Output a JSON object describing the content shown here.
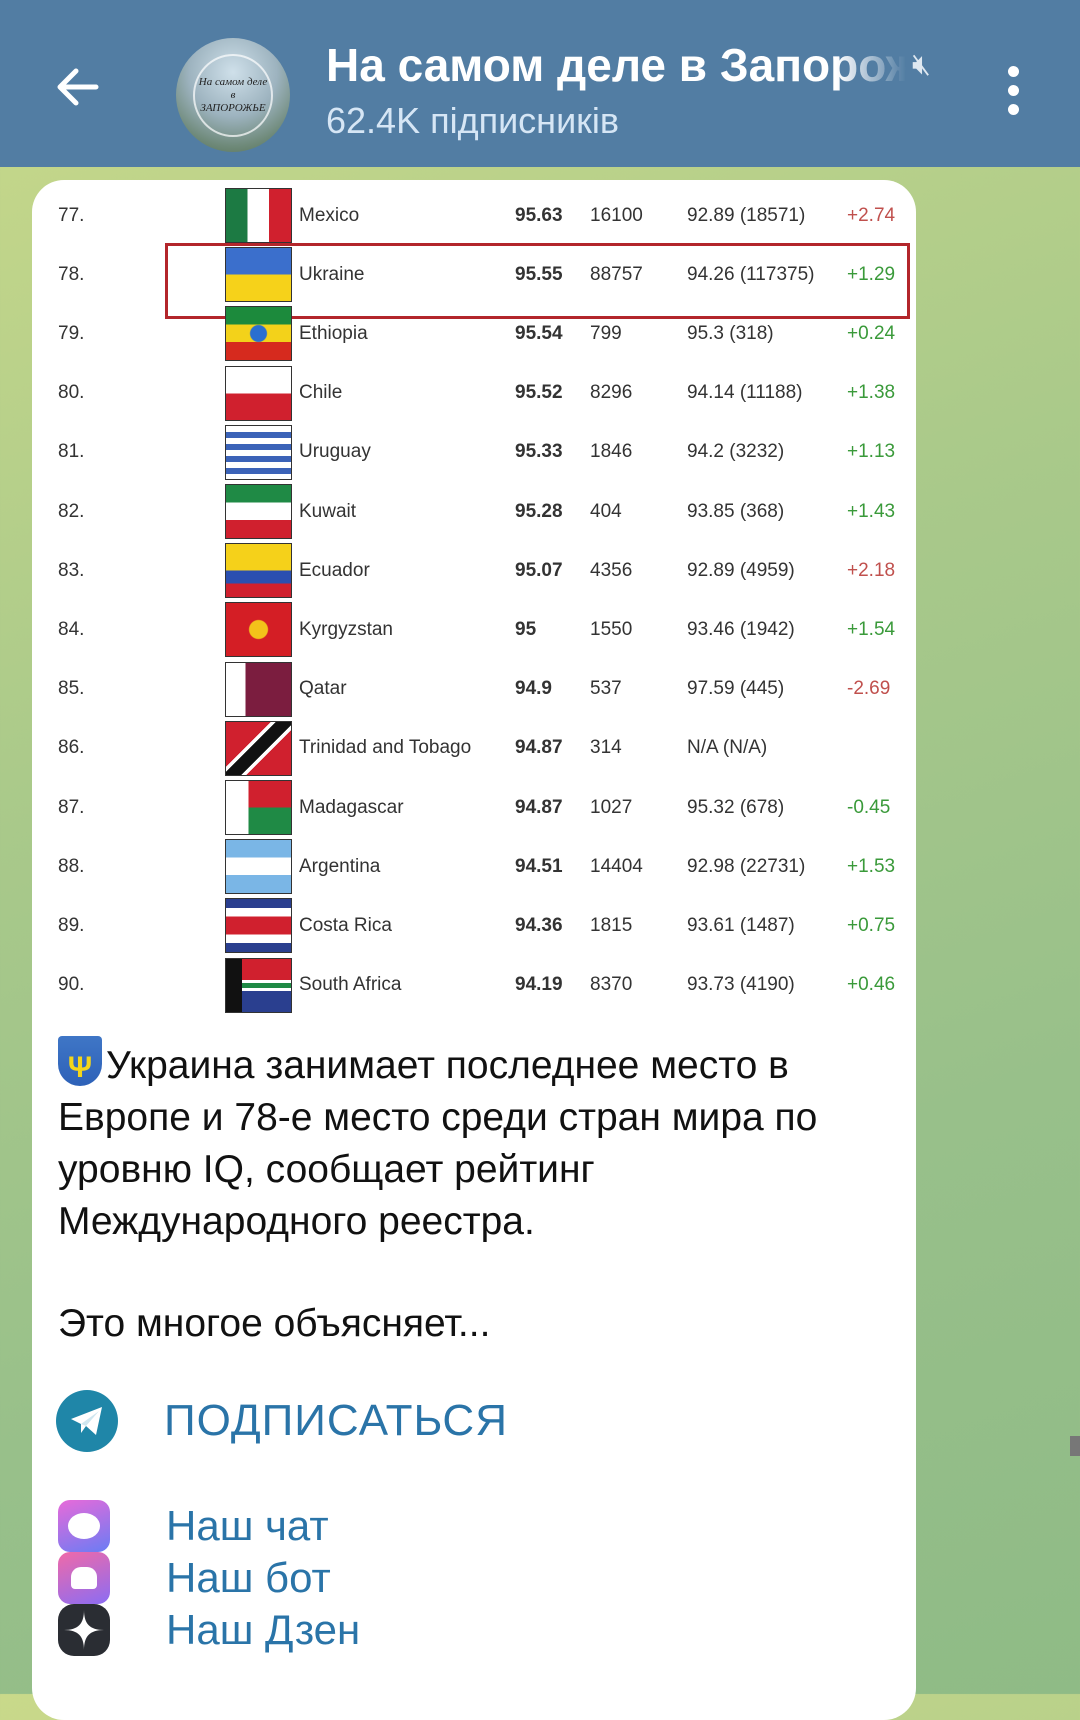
{
  "header": {
    "title": "На самом деле в Запорожье",
    "subscribers": "62.4K підписників",
    "avatar_text": "На самом деле в ЗАПОРОЖЬЕ",
    "muted": true
  },
  "table": {
    "highlight_rank": "78.",
    "rows": [
      {
        "rank": "77.",
        "flag": "mexico",
        "country": "Mexico",
        "score": "95.63",
        "n": "16100",
        "prev": "92.89 (18571)",
        "change": "+2.74",
        "change_color": "#c0504d"
      },
      {
        "rank": "78.",
        "flag": "ukraine",
        "country": "Ukraine",
        "score": "95.55",
        "n": "88757",
        "prev": "94.26 (117375)",
        "change": "+1.29",
        "change_color": "#3a9a3a"
      },
      {
        "rank": "79.",
        "flag": "ethiopia",
        "country": "Ethiopia",
        "score": "95.54",
        "n": "799",
        "prev": "95.3 (318)",
        "change": "+0.24",
        "change_color": "#3a9a3a"
      },
      {
        "rank": "80.",
        "flag": "chile",
        "country": "Chile",
        "score": "95.52",
        "n": "8296",
        "prev": "94.14 (11188)",
        "change": "+1.38",
        "change_color": "#3a9a3a"
      },
      {
        "rank": "81.",
        "flag": "uruguay",
        "country": "Uruguay",
        "score": "95.33",
        "n": "1846",
        "prev": "94.2 (3232)",
        "change": "+1.13",
        "change_color": "#3a9a3a"
      },
      {
        "rank": "82.",
        "flag": "kuwait",
        "country": "Kuwait",
        "score": "95.28",
        "n": "404",
        "prev": "93.85 (368)",
        "change": "+1.43",
        "change_color": "#3a9a3a"
      },
      {
        "rank": "83.",
        "flag": "ecuador",
        "country": "Ecuador",
        "score": "95.07",
        "n": "4356",
        "prev": "92.89 (4959)",
        "change": "+2.18",
        "change_color": "#c0504d"
      },
      {
        "rank": "84.",
        "flag": "kyrgyzstan",
        "country": "Kyrgyzstan",
        "score": "95",
        "n": "1550",
        "prev": "93.46 (1942)",
        "change": "+1.54",
        "change_color": "#3a9a3a"
      },
      {
        "rank": "85.",
        "flag": "qatar",
        "country": "Qatar",
        "score": "94.9",
        "n": "537",
        "prev": "97.59 (445)",
        "change": "-2.69",
        "change_color": "#c0504d"
      },
      {
        "rank": "86.",
        "flag": "trinidad",
        "country": "Trinidad and Tobago",
        "score": "94.87",
        "n": "314",
        "prev": "N/A (N/A)",
        "change": "",
        "change_color": "#3a9a3a"
      },
      {
        "rank": "87.",
        "flag": "madagascar",
        "country": "Madagascar",
        "score": "94.87",
        "n": "1027",
        "prev": "95.32 (678)",
        "change": "-0.45",
        "change_color": "#3a9a3a"
      },
      {
        "rank": "88.",
        "flag": "argentina",
        "country": "Argentina",
        "score": "94.51",
        "n": "14404",
        "prev": "92.98 (22731)",
        "change": "+1.53",
        "change_color": "#3a9a3a"
      },
      {
        "rank": "89.",
        "flag": "costa-rica",
        "country": "Costa Rica",
        "score": "94.36",
        "n": "1815",
        "prev": "93.61 (1487)",
        "change": "+0.75",
        "change_color": "#3a9a3a"
      },
      {
        "rank": "90.",
        "flag": "south-africa",
        "country": "South Africa",
        "score": "94.19",
        "n": "8370",
        "prev": "93.73 (4190)",
        "change": "+0.46",
        "change_color": "#3a9a3a"
      }
    ]
  },
  "post": {
    "text": "Украина занимает последнее место в Европе и 78-е  место среди стран мира по уровню IQ, сообщает рейтинг Международного реестра.",
    "text2": "Это многое объясняет...",
    "emoji": "ukraine-emblem"
  },
  "links": {
    "subscribe": "ПОДПИСАТЬСЯ",
    "chat": "Наш чат",
    "bot": "Наш бот",
    "dzen": "Наш Дзен"
  },
  "colors": {
    "header": "#527da3",
    "link": "#2a74a8",
    "highlight": "#b3262b"
  }
}
